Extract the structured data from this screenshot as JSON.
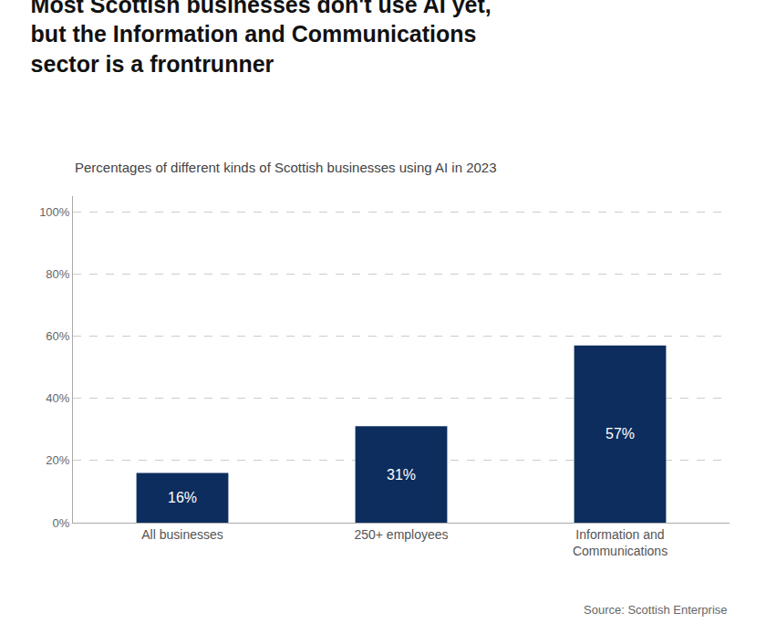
{
  "chart_data": {
    "type": "bar",
    "title": "Most Scottish businesses don't use AI yet,\nbut the Information and Communications\nsector is a frontrunner",
    "subtitle": "Percentages of different kinds of Scottish businesses using AI in 2023",
    "annotations": [
      "Source: Scottish Enterprise"
    ],
    "categories": [
      "All businesses",
      "250+ employees",
      "Information and\nCommunications"
    ],
    "values": [
      16,
      31,
      57
    ],
    "value_labels": [
      "16%",
      "31%",
      "57%"
    ],
    "data_labels": true,
    "color": "#0d2d5e",
    "ylim": [
      0,
      105
    ],
    "yticks": [
      {
        "value": 0,
        "label": "0%"
      },
      {
        "value": 20,
        "label": "20%"
      },
      {
        "value": 40,
        "label": "40%"
      },
      {
        "value": 60,
        "label": "60%"
      },
      {
        "value": 80,
        "label": "80%"
      },
      {
        "value": 100,
        "label": "100%"
      }
    ],
    "grid": true
  }
}
